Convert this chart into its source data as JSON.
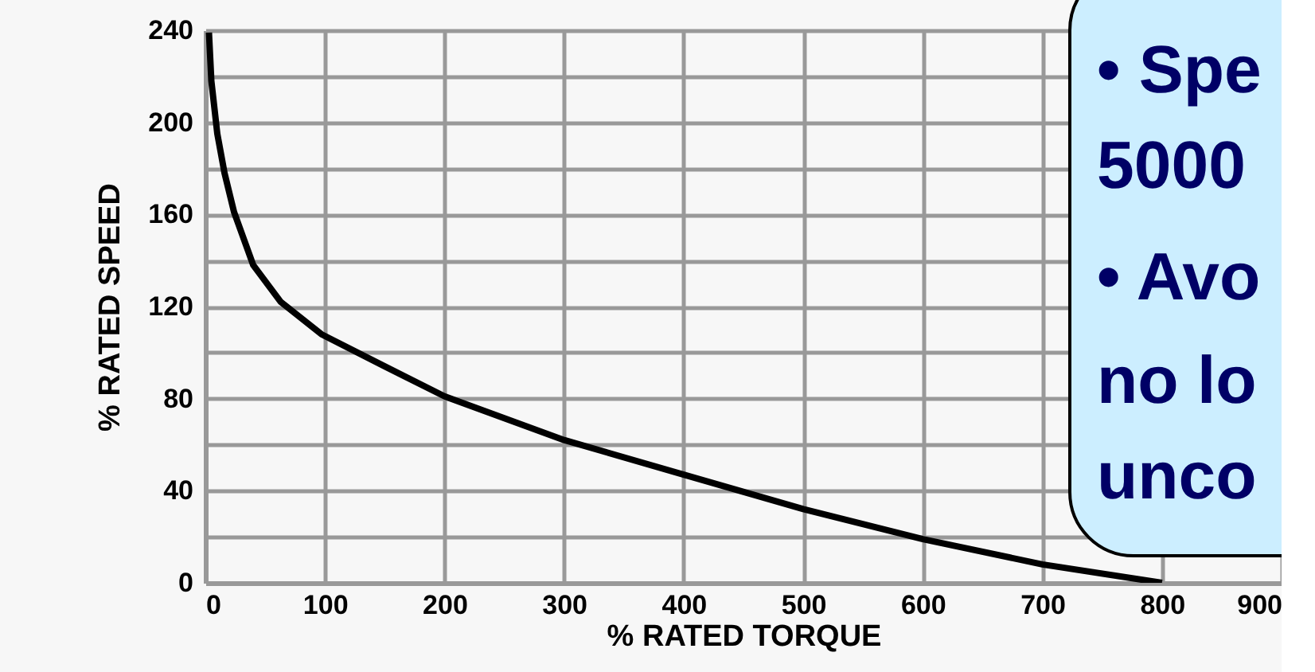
{
  "chart_data": {
    "type": "line",
    "xlabel": "% RATED TORQUE",
    "ylabel": "% RATED SPEED",
    "x": [
      3,
      5,
      10,
      16,
      24,
      40,
      63,
      97,
      150,
      200,
      300,
      400,
      500,
      600,
      700,
      800
    ],
    "series": [
      {
        "color": "#000000",
        "values": [
          239,
          218,
          195,
          178,
          161,
          138,
          122,
          108,
          94,
          81,
          62,
          47,
          32,
          19,
          8,
          0
        ]
      }
    ],
    "xlim": [
      0,
      900
    ],
    "xticks": [
      0,
      100,
      200,
      300,
      400,
      500,
      600,
      700,
      800,
      900
    ],
    "ylim": [
      0,
      240
    ],
    "yticks": [
      0,
      {
        "value": 20,
        "label": null
      },
      40,
      {
        "value": 60,
        "label": null
      },
      80,
      {
        "value": 100,
        "label": null
      },
      120,
      {
        "value": 140,
        "label": null
      },
      160,
      {
        "value": 180,
        "label": null
      },
      200,
      {
        "value": 220,
        "label": null
      },
      240
    ],
    "grid": true,
    "marker": "none",
    "line_style": "solid",
    "annotations": [
      "• Spe",
      "5000",
      "• Avo",
      "no lo",
      "unco"
    ]
  }
}
